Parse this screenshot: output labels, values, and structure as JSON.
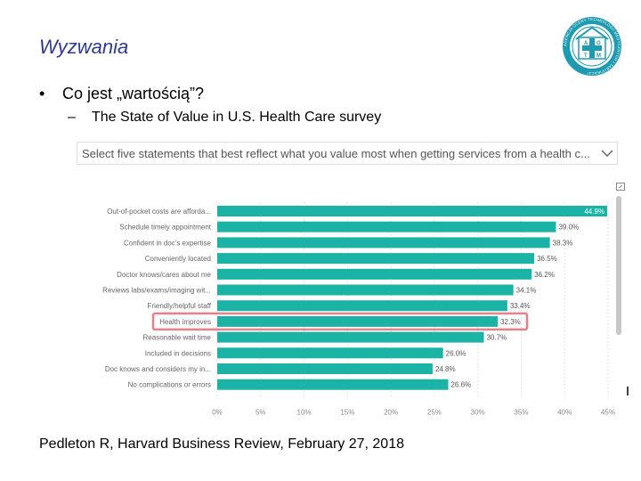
{
  "slide": {
    "title": "Wyzwania",
    "bullet": "Co jest „wartością”?",
    "sub_bullet": "The State of Value in U.S. Health Care survey",
    "citation": "Pedleton R, Harvard Business Review, February 27, 2018",
    "logo_text": "AGENCJA OCENY TECHNOLOGII MEDYCZNYCH I TARYFIKACJI",
    "logo_letters": [
      "A",
      "O",
      "T",
      "M"
    ]
  },
  "filter": {
    "dropdown_label": "Select five statements that best reflect what you value most when getting services from a health c..."
  },
  "colors": {
    "title": "#2f3a8f",
    "bar": "#1ab3a6",
    "highlight": "#e8808a",
    "logo": "#1e9bb0"
  },
  "chart_data": {
    "type": "bar",
    "orientation": "horizontal",
    "categories": [
      "Out-of-pocket costs are afforda...",
      "Schedule timely appointment",
      "Confident in doc's expertise",
      "Conveniently located",
      "Doctor knows/cares about me",
      "Reviews labs/exams/imaging wit...",
      "Friendly/helpful staff",
      "Health improves",
      "Reasonable wait time",
      "Included in decisions",
      "Doc knows and considers my in...",
      "No complications or errors"
    ],
    "values": [
      44.9,
      39.0,
      38.3,
      36.5,
      36.2,
      34.1,
      33.4,
      32.3,
      30.7,
      26.0,
      24.8,
      26.6
    ],
    "value_labels": [
      "44.9%",
      "39.0%",
      "38.3%",
      "36.5%",
      "36.2%",
      "34.1%",
      "33.4%",
      "32.3%",
      "30.7%",
      "26.0%",
      "24.8%",
      "26.6%"
    ],
    "xlim": [
      0,
      45
    ],
    "x_ticks": [
      0,
      5,
      10,
      15,
      20,
      25,
      30,
      35,
      40,
      45
    ],
    "x_tick_labels": [
      "0%",
      "5%",
      "10%",
      "15%",
      "20%",
      "25%",
      "30%",
      "35%",
      "40%",
      "45%"
    ],
    "highlighted_category": "Health improves",
    "grid": true,
    "title": "",
    "xlabel": "",
    "ylabel": ""
  }
}
